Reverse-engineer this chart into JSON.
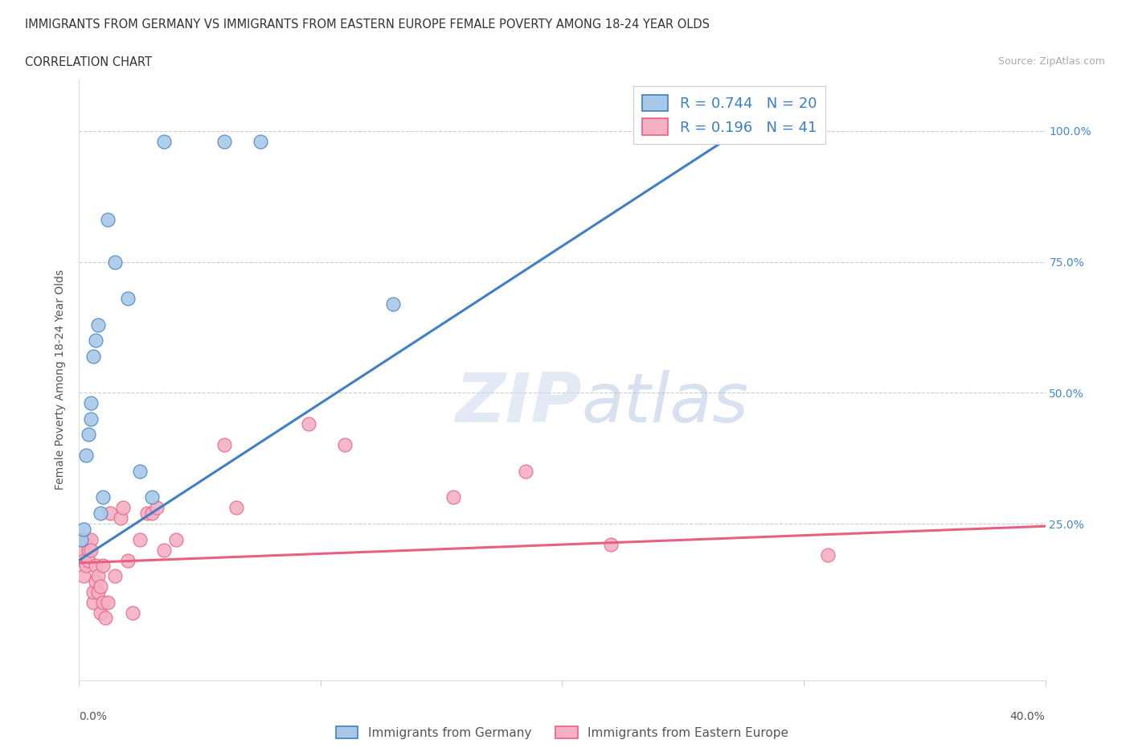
{
  "title1": "IMMIGRANTS FROM GERMANY VS IMMIGRANTS FROM EASTERN EUROPE FEMALE POVERTY AMONG 18-24 YEAR OLDS",
  "title2": "CORRELATION CHART",
  "source": "Source: ZipAtlas.com",
  "ylabel": "Female Poverty Among 18-24 Year Olds",
  "yticks": [
    0.0,
    0.25,
    0.5,
    0.75,
    1.0
  ],
  "ytick_labels": [
    "",
    "25.0%",
    "50.0%",
    "75.0%",
    "100.0%"
  ],
  "xlim": [
    0.0,
    0.4
  ],
  "ylim": [
    -0.05,
    1.1
  ],
  "germany_color": "#a8c8e8",
  "eastern_color": "#f5b0c5",
  "germany_line_color": "#4080c0",
  "eastern_line_color": "#e86080",
  "R_germany": 0.744,
  "N_germany": 20,
  "R_eastern": 0.196,
  "N_eastern": 41,
  "germany_x": [
    0.001,
    0.002,
    0.003,
    0.004,
    0.005,
    0.005,
    0.006,
    0.007,
    0.008,
    0.009,
    0.01,
    0.012,
    0.015,
    0.02,
    0.025,
    0.03,
    0.035,
    0.06,
    0.075,
    0.13
  ],
  "germany_y": [
    0.22,
    0.24,
    0.38,
    0.42,
    0.45,
    0.48,
    0.57,
    0.6,
    0.63,
    0.27,
    0.3,
    0.83,
    0.75,
    0.68,
    0.35,
    0.3,
    0.98,
    0.98,
    0.98,
    0.67
  ],
  "eastern_x": [
    0.001,
    0.002,
    0.002,
    0.003,
    0.003,
    0.004,
    0.004,
    0.005,
    0.005,
    0.006,
    0.006,
    0.007,
    0.007,
    0.008,
    0.008,
    0.009,
    0.009,
    0.01,
    0.01,
    0.011,
    0.012,
    0.013,
    0.015,
    0.017,
    0.018,
    0.02,
    0.022,
    0.025,
    0.028,
    0.03,
    0.032,
    0.035,
    0.04,
    0.06,
    0.065,
    0.095,
    0.11,
    0.155,
    0.185,
    0.22,
    0.31
  ],
  "eastern_y": [
    0.2,
    0.18,
    0.15,
    0.22,
    0.17,
    0.2,
    0.18,
    0.22,
    0.2,
    0.1,
    0.12,
    0.14,
    0.17,
    0.12,
    0.15,
    0.08,
    0.13,
    0.1,
    0.17,
    0.07,
    0.1,
    0.27,
    0.15,
    0.26,
    0.28,
    0.18,
    0.08,
    0.22,
    0.27,
    0.27,
    0.28,
    0.2,
    0.22,
    0.4,
    0.28,
    0.44,
    0.4,
    0.3,
    0.35,
    0.21,
    0.19
  ],
  "blue_line_x": [
    0.0,
    0.28
  ],
  "blue_line_y": [
    0.18,
    1.02
  ],
  "pink_line_x": [
    0.0,
    0.4
  ],
  "pink_line_y": [
    0.175,
    0.245
  ]
}
